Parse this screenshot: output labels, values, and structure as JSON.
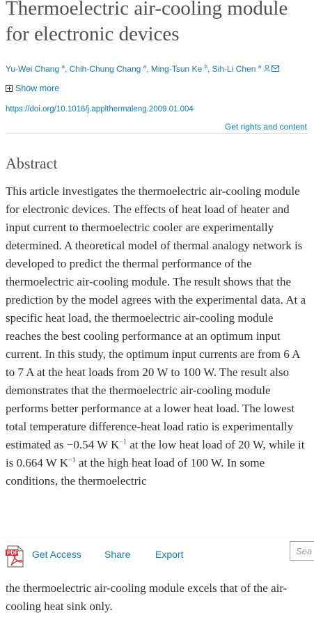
{
  "article": {
    "title": "Thermoelectric air-cooling module for electronic devices",
    "authors": [
      {
        "name": "Yu-Wei Chang",
        "sup": "a"
      },
      {
        "name": "Chih-Chung Chang",
        "sup": "a"
      },
      {
        "name": "Ming-Tsun Ke",
        "sup": "b"
      },
      {
        "name": "Sih-Li Chen",
        "sup": "a"
      }
    ],
    "author_icons": [
      "person-icon",
      "envelope-icon"
    ],
    "show_more": "Show more",
    "doi": "https://doi.org/10.1016/j.applthermaleng.2009.01.004",
    "rights": "Get rights and content"
  },
  "abstract": {
    "heading": "Abstract",
    "p1": "This article investigates the thermoelectric air-cooling module for electronic devices. The effects of heat load of heater and input current to thermoelectric cooler are experimentally determined. A theoretical model of thermal analogy network is developed to predict the thermal performance of the thermoelectric air-cooling module. The result shows that the prediction by the model agrees with the experimental data. At a specific heat load, the thermoelectric air-cooling module reaches the best cooling performance at an optimum input current. In this study, the optimum input currents are from 6 A to 7 A at the heat loads from 20 W to 100 W. The result also demonstrates that the thermoelectric air-cooling module performs better performance at a lower heat load. The lowest total temperature difference-heat load ratio is experimentally estimated as −0.54 W K",
    "unit_exp_1": "−1",
    "p2": " at the low heat load of 20 W, while it is 0.664 W K",
    "unit_exp_2": "−1",
    "p3": " at the high heat load of 100 W. In some conditions, the thermoelectric",
    "tail": "the thermoelectric air-cooling module excels that of the air-cooling heat sink only."
  },
  "toolbar": {
    "get_access": "Get Access",
    "share": "Share",
    "export": "Export",
    "search_placeholder": "Sea"
  }
}
